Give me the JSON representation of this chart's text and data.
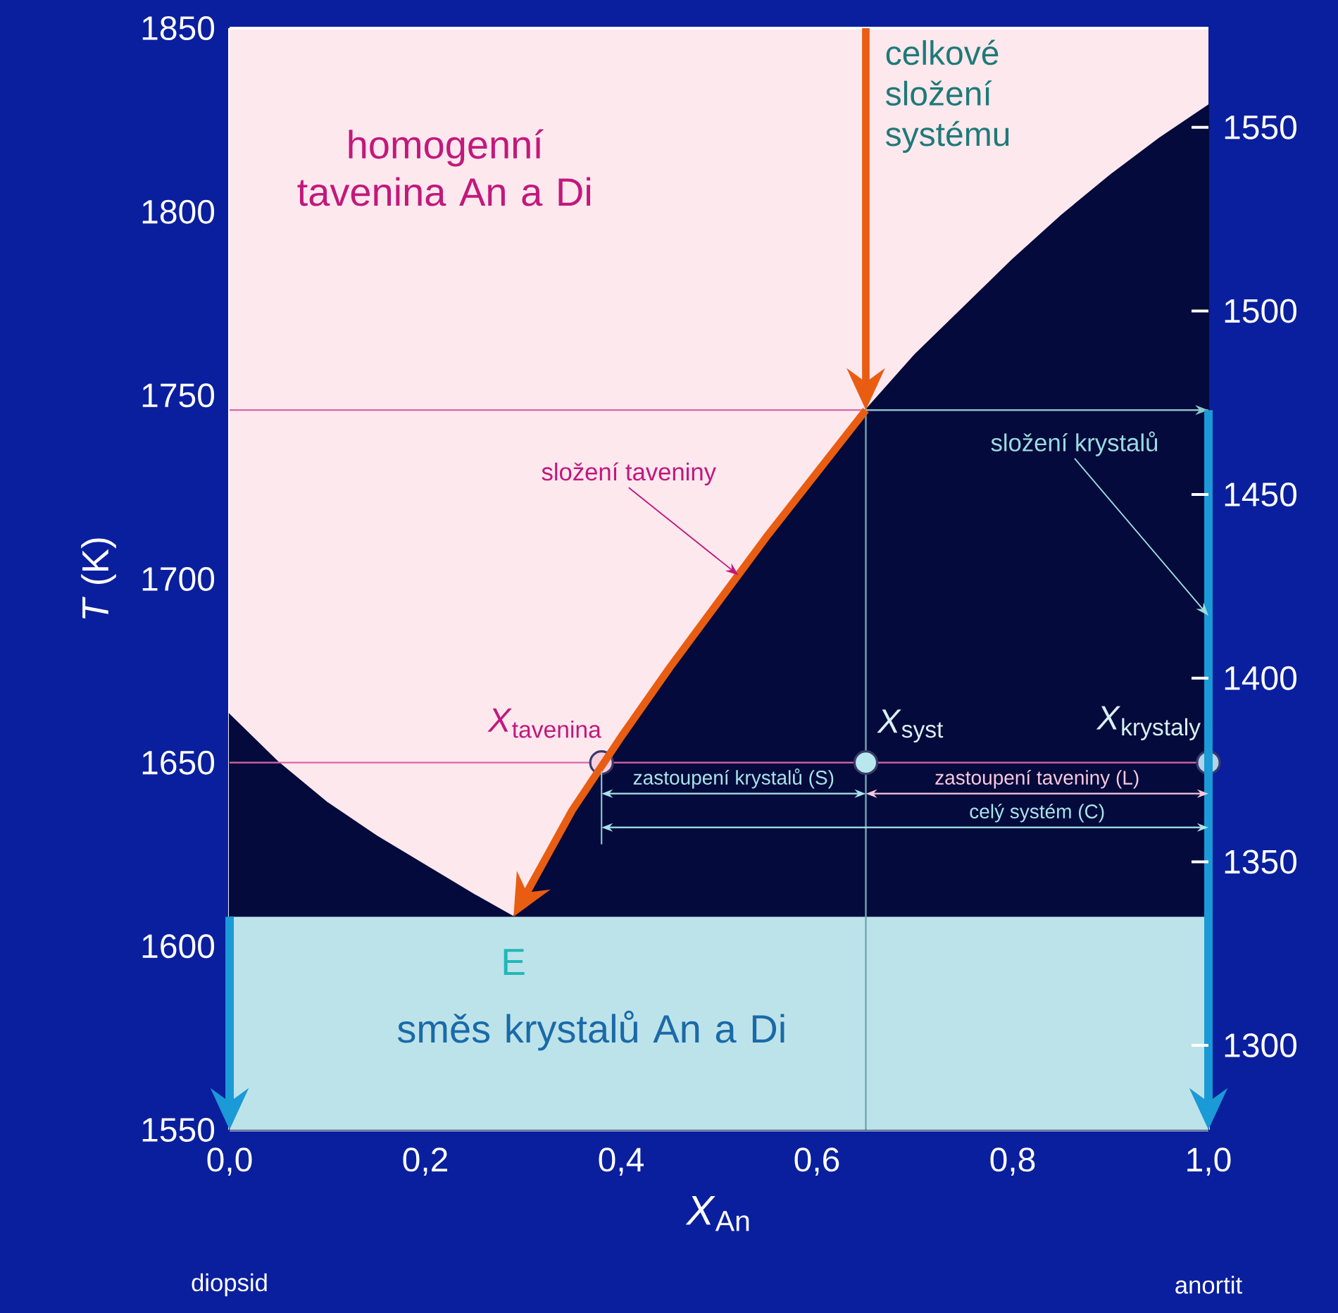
{
  "chart_data": {
    "type": "area",
    "xlabel": "*X*$_{An}$",
    "ylabel": "*T* (K)",
    "xlim": [
      0,
      1.0
    ],
    "ylim": [
      1550,
      1850
    ],
    "y2lim": [
      1277,
      1577
    ],
    "xticks": [
      {
        "value": 0,
        "label": "0,0"
      },
      {
        "value": 0.1,
        "label": null
      },
      {
        "value": 0.2,
        "label": "0,2"
      },
      {
        "value": 0.3,
        "label": null
      },
      {
        "value": 0.4,
        "label": "0,4"
      },
      {
        "value": 0.5,
        "label": null
      },
      {
        "value": 0.6,
        "label": "0,6"
      },
      {
        "value": 0.7,
        "label": null
      },
      {
        "value": 0.8,
        "label": "0,8"
      },
      {
        "value": 0.9,
        "label": null
      },
      {
        "value": 1.0,
        "label": "1,0"
      }
    ],
    "yticks": [
      1550,
      1600,
      1650,
      1700,
      1750,
      1800,
      1850
    ],
    "y2ticks": [
      1300,
      1350,
      1400,
      1450,
      1500,
      1550
    ],
    "series": [
      {
        "color": "#040a3c",
        "x": [
          0,
          0.05,
          0.1,
          0.15,
          0.2,
          0.25,
          0.29,
          0.35,
          0.4,
          0.45,
          0.5,
          0.55,
          0.6,
          0.65,
          0.7,
          0.75,
          0.8,
          0.85,
          0.9,
          0.95,
          1.0
        ],
        "values": [
          1663,
          1650,
          1639,
          1630,
          1622,
          1614,
          1608,
          1637,
          1657,
          1676,
          1694,
          1712,
          1729,
          1746,
          1761,
          1774,
          1787,
          1799,
          1810,
          1820,
          1829
        ]
      },
      {
        "type": "scatter",
        "marker": "circle",
        "x": [
          0.38,
          0.65,
          1.0
        ],
        "values": [
          1650,
          1650,
          1650
        ],
        "colors": [
          "#f8d0e0",
          "#b8e8ee",
          "#b0d4e8"
        ]
      }
    ],
    "ref_lines": [
      {
        "axis": "y",
        "value": 1746,
        "color": "#d868a8"
      },
      {
        "axis": "y",
        "value": 1650,
        "color": "#d868a8"
      },
      {
        "axis": "x",
        "value": 0.65,
        "color": "#70a8b0"
      }
    ],
    "bands": [
      {
        "axis": "y",
        "from": 1608,
        "to": 1850,
        "color": "#fde8ee",
        "label": "homogenní tavenina An a Di"
      },
      {
        "axis": "y",
        "from": 1550,
        "to": 1608,
        "color": "#bde3ea",
        "label": "směs krystalů An a Di"
      }
    ],
    "annotations": [
      {
        "text": "celkové složení systému",
        "x": 0.65,
        "y": 1850
      },
      "zastoupení krystalů (S)",
      "zastoupení taveniny (L)",
      "celý systém (C)",
      {
        "text": "složení taveniny",
        "x": 0.52,
        "y": 1701
      },
      {
        "text": "složení krystalů",
        "x": 1.0,
        "y": 1690
      },
      {
        "text": "E",
        "x": 0.29,
        "y": 1608
      },
      {
        "text": "*X*$_{tavenina}$",
        "x": 0.38,
        "y": 1650
      },
      {
        "text": "*X*$_{syst}$",
        "x": 0.65,
        "y": 1650
      },
      {
        "text": "*X*$_{krystaly}$",
        "x": 1.0,
        "y": 1650
      },
      "diopsid",
      "anortit"
    ]
  }
}
